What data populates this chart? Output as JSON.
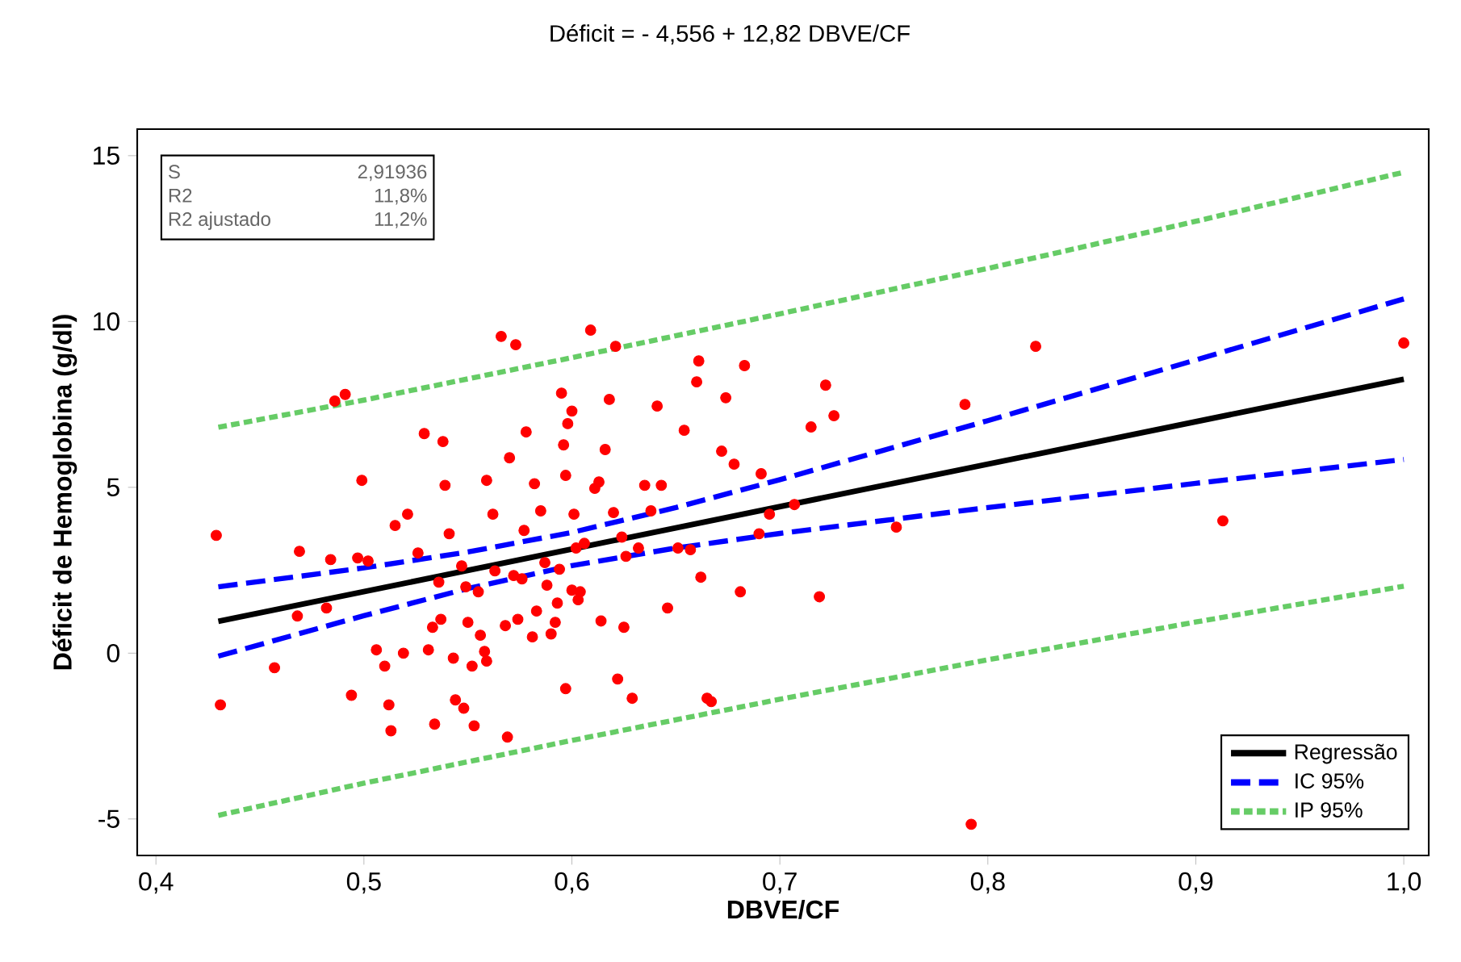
{
  "chart_data": {
    "type": "scatter",
    "title": "Déficit =  - 4,556 + 12,82 DBVE/CF",
    "xlabel": "DBVE/CF",
    "ylabel": "Déficit de Hemoglobina (g/dl)",
    "xlim": [
      0.391,
      1.012
    ],
    "ylim": [
      -6.1,
      15.8
    ],
    "xticks": [
      {
        "value": 0.4,
        "label": "0,4"
      },
      {
        "value": 0.5,
        "label": "0,5"
      },
      {
        "value": 0.6,
        "label": "0,6"
      },
      {
        "value": 0.7,
        "label": "0,7"
      },
      {
        "value": 0.8,
        "label": "0,8"
      },
      {
        "value": 0.9,
        "label": "0,9"
      },
      {
        "value": 1.0,
        "label": "1,0"
      }
    ],
    "yticks": [
      -5,
      0,
      5,
      10,
      15
    ],
    "legend": "bottom right",
    "annotations": [
      "S",
      "2,91936",
      "R2",
      "11,8%",
      "R2 ajustado",
      "11,2%"
    ],
    "series": [
      {
        "type": "scatter",
        "color": "#ff0000",
        "marker": "circle",
        "x": [
          0.429,
          0.431,
          0.457,
          0.469,
          0.468,
          0.482,
          0.484,
          0.486,
          0.491,
          0.494,
          0.497,
          0.499,
          0.502,
          0.506,
          0.51,
          0.512,
          0.513,
          0.515,
          0.519,
          0.521,
          0.526,
          0.529,
          0.531,
          0.533,
          0.534,
          0.536,
          0.537,
          0.538,
          0.539,
          0.541,
          0.543,
          0.544,
          0.547,
          0.548,
          0.549,
          0.55,
          0.552,
          0.553,
          0.555,
          0.556,
          0.558,
          0.559,
          0.559,
          0.562,
          0.563,
          0.566,
          0.568,
          0.569,
          0.57,
          0.572,
          0.573,
          0.574,
          0.576,
          0.577,
          0.578,
          0.581,
          0.582,
          0.583,
          0.585,
          0.587,
          0.588,
          0.59,
          0.592,
          0.593,
          0.594,
          0.595,
          0.596,
          0.597,
          0.597,
          0.598,
          0.6,
          0.6,
          0.601,
          0.602,
          0.603,
          0.604,
          0.606,
          0.609,
          0.611,
          0.613,
          0.614,
          0.616,
          0.618,
          0.62,
          0.621,
          0.622,
          0.624,
          0.625,
          0.626,
          0.629,
          0.632,
          0.635,
          0.638,
          0.641,
          0.643,
          0.646,
          0.651,
          0.654,
          0.657,
          0.66,
          0.661,
          0.662,
          0.665,
          0.667,
          0.672,
          0.674,
          0.678,
          0.681,
          0.683,
          0.69,
          0.691,
          0.695,
          0.707,
          0.715,
          0.719,
          0.722,
          0.726,
          0.756,
          0.789,
          0.792,
          0.823,
          0.913,
          1.0
        ],
        "values": [
          3.55,
          -1.56,
          -0.44,
          3.07,
          1.12,
          1.36,
          2.82,
          7.6,
          7.8,
          -1.27,
          2.87,
          5.21,
          2.78,
          0.1,
          -0.39,
          -1.56,
          -2.34,
          3.85,
          0,
          4.19,
          3.02,
          6.62,
          0.1,
          0.78,
          -2.14,
          2.14,
          1.02,
          6.38,
          5.06,
          3.6,
          -0.15,
          -1.41,
          2.63,
          -1.66,
          2.0,
          0.93,
          -0.39,
          -2.19,
          1.85,
          0.54,
          0.05,
          5.21,
          -0.24,
          4.19,
          2.48,
          9.55,
          0.83,
          -2.53,
          5.89,
          2.34,
          9.3,
          1.02,
          2.24,
          3.7,
          6.67,
          0.49,
          5.11,
          1.27,
          4.29,
          2.73,
          2.05,
          0.58,
          0.93,
          1.51,
          2.53,
          7.84,
          6.28,
          -1.07,
          5.36,
          6.92,
          7.3,
          1.9,
          4.19,
          3.17,
          1.61,
          1.85,
          3.31,
          9.74,
          4.97,
          5.16,
          0.97,
          6.14,
          7.65,
          4.24,
          9.25,
          -0.78,
          3.5,
          0.78,
          2.92,
          -1.36,
          3.17,
          5.06,
          4.29,
          7.45,
          5.06,
          1.36,
          3.17,
          6.72,
          3.12,
          8.18,
          8.81,
          2.29,
          -1.36,
          -1.46,
          6.09,
          7.7,
          5.7,
          1.85,
          8.67,
          3.6,
          5.41,
          4.19,
          4.48,
          6.82,
          1.7,
          8.08,
          7.16,
          3.8,
          7.5,
          -5.16,
          9.25,
          3.99,
          9.35
        ]
      },
      {
        "type": "line",
        "name": "Regressão",
        "color": "#000000",
        "line_style": "solid",
        "x": [
          0.43,
          1.0
        ],
        "values": [
          0.96,
          8.26
        ]
      },
      {
        "type": "line",
        "name": "IC 95%",
        "color": "#0000ff",
        "line_style": "dashed",
        "x": [
          0.43,
          0.5,
          0.55,
          0.6,
          0.65,
          0.7,
          0.8,
          0.9,
          1.0
        ],
        "values": [
          2.0,
          2.57,
          3.05,
          3.64,
          4.39,
          5.23,
          7.01,
          8.84,
          10.68
        ]
      },
      {
        "type": "line",
        "color": "#0000ff",
        "line_style": "dashed",
        "x": [
          0.43,
          0.5,
          0.55,
          0.6,
          0.65,
          0.7,
          0.8,
          0.9,
          1.0
        ],
        "values": [
          -0.09,
          1.13,
          1.95,
          2.64,
          3.17,
          3.61,
          4.39,
          5.12,
          5.84
        ]
      },
      {
        "type": "line",
        "name": "IP 95%",
        "color": "#66cc66",
        "line_style": "dotted",
        "x": [
          0.43,
          0.5,
          0.6,
          0.7,
          0.8,
          0.9,
          1.0
        ],
        "values": [
          6.81,
          7.63,
          8.91,
          10.23,
          11.6,
          13.02,
          14.5
        ]
      },
      {
        "type": "line",
        "color": "#66cc66",
        "line_style": "dotted",
        "x": [
          0.43,
          0.5,
          0.6,
          0.7,
          0.8,
          0.9,
          1.0
        ],
        "values": [
          -4.89,
          -3.92,
          -2.63,
          -1.39,
          -0.2,
          0.94,
          2.02
        ]
      }
    ]
  }
}
